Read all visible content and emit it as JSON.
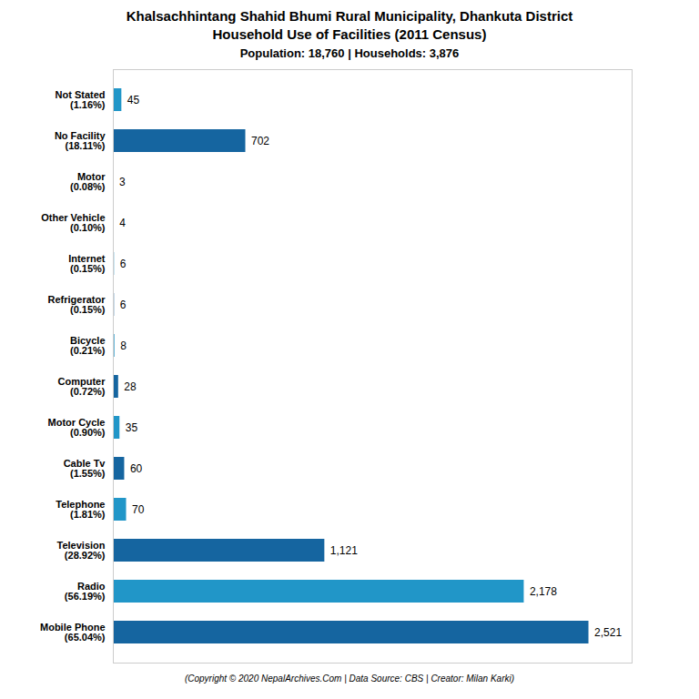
{
  "chart_data": {
    "type": "bar",
    "orientation": "horizontal",
    "title": "Khalsachhintang Shahid Bhumi Rural Municipality, Dhankuta District\nHousehold Use of Facilities (2011 Census)",
    "subtitle": "Population: 18,760 | Households: 3,876",
    "annotations": [
      "(Copyright © 2020 NepalArchives.Com | Data Source: CBS | Creator: Milan Karki)"
    ],
    "categories": [
      "Not Stated\n(1.16%)",
      "No Facility\n(18.11%)",
      "Motor\n(0.08%)",
      "Other Vehicle\n(0.10%)",
      "Internet\n(0.15%)",
      "Refrigerator\n(0.15%)",
      "Bicycle\n(0.21%)",
      "Computer\n(0.72%)",
      "Motor Cycle\n(0.90%)",
      "Cable Tv\n(1.55%)",
      "Telephone\n(1.81%)",
      "Television\n(28.92%)",
      "Radio\n(56.19%)",
      "Mobile Phone\n(65.04%)"
    ],
    "values": [
      45,
      702,
      3,
      4,
      6,
      6,
      8,
      28,
      35,
      60,
      70,
      1121,
      2178,
      2521
    ],
    "value_labels": [
      "45",
      "702",
      "3",
      "4",
      "6",
      "6",
      "8",
      "28",
      "35",
      "60",
      "70",
      "1,121",
      "2,178",
      "2,521"
    ],
    "data_labels": true,
    "colors": [
      "#2196c8",
      "#1565a0",
      "#2196c8",
      "#1565a0",
      "#2196c8",
      "#1565a0",
      "#2196c8",
      "#1565a0",
      "#2196c8",
      "#1565a0",
      "#2196c8",
      "#1565a0",
      "#2196c8",
      "#1565a0"
    ],
    "xlim": [
      0,
      2750
    ],
    "tick_labels": "y"
  }
}
